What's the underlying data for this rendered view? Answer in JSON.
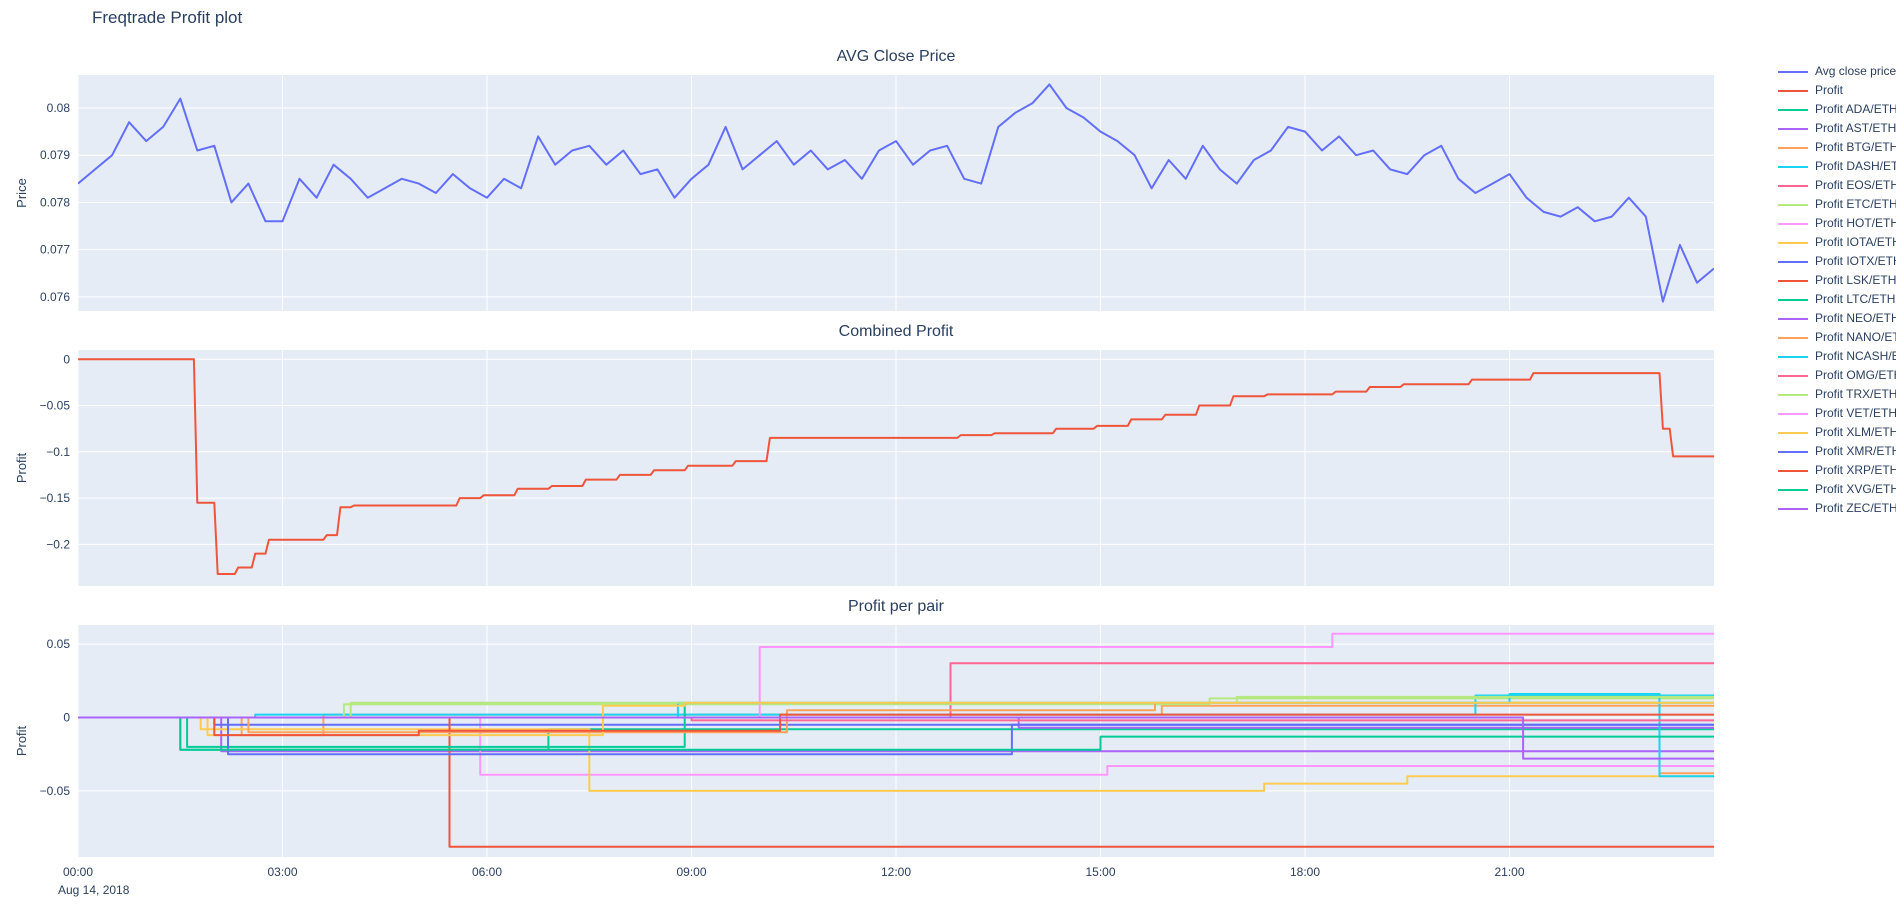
{
  "figure": {
    "title": "Freqtrade Profit plot"
  },
  "colors": {
    "text": "#2a3f5f",
    "plot_bg": "#e5ecf6",
    "grid": "#ffffff"
  },
  "xaxis": {
    "range": [
      0,
      24
    ],
    "ticks": [
      {
        "x": 0,
        "label": "00:00"
      },
      {
        "x": 3,
        "label": "03:00"
      },
      {
        "x": 6,
        "label": "06:00"
      },
      {
        "x": 9,
        "label": "09:00"
      },
      {
        "x": 12,
        "label": "12:00"
      },
      {
        "x": 15,
        "label": "15:00"
      },
      {
        "x": 18,
        "label": "18:00"
      },
      {
        "x": 21,
        "label": "21:00"
      }
    ],
    "date_label": "Aug 14, 2018"
  },
  "chart_data": [
    {
      "type": "line",
      "title": "AVG Close Price",
      "ylabel": "Price",
      "ylim": [
        0.0757,
        0.0807
      ],
      "yticks": {
        "values": [
          0.076,
          0.077,
          0.078,
          0.079,
          0.08
        ],
        "labels": [
          "0.076",
          "0.077",
          "0.078",
          "0.079",
          "0.08"
        ]
      },
      "series": [
        {
          "name": "Avg close price",
          "color": "#636efa",
          "x0": 0,
          "dx": 0.25,
          "y": [
            0.0784,
            0.0787,
            0.079,
            0.0797,
            0.0793,
            0.0796,
            0.0802,
            0.0791,
            0.0792,
            0.078,
            0.0784,
            0.0776,
            0.0776,
            0.0785,
            0.0781,
            0.0788,
            0.0785,
            0.0781,
            0.0783,
            0.0785,
            0.0784,
            0.0782,
            0.0786,
            0.0783,
            0.0781,
            0.0785,
            0.0783,
            0.0794,
            0.0788,
            0.0791,
            0.0792,
            0.0788,
            0.0791,
            0.0786,
            0.0787,
            0.0781,
            0.0785,
            0.0788,
            0.0796,
            0.0787,
            0.079,
            0.0793,
            0.0788,
            0.0791,
            0.0787,
            0.0789,
            0.0785,
            0.0791,
            0.0793,
            0.0788,
            0.0791,
            0.0792,
            0.0785,
            0.0784,
            0.0796,
            0.0799,
            0.0801,
            0.0805,
            0.08,
            0.0798,
            0.0795,
            0.0793,
            0.079,
            0.0783,
            0.0789,
            0.0785,
            0.0792,
            0.0787,
            0.0784,
            0.0789,
            0.0791,
            0.0796,
            0.0795,
            0.0791,
            0.0794,
            0.079,
            0.0791,
            0.0787,
            0.0786,
            0.079,
            0.0792,
            0.0785,
            0.0782,
            0.0784,
            0.0786,
            0.0781,
            0.0778,
            0.0777,
            0.0779,
            0.0776,
            0.0777,
            0.0781,
            0.0777,
            0.0759,
            0.0771,
            0.0763,
            0.0766
          ]
        }
      ]
    },
    {
      "type": "line",
      "title": "Combined Profit",
      "ylabel": "Profit",
      "ylim": [
        -0.245,
        0.01
      ],
      "yticks": {
        "values": [
          0,
          -0.05,
          -0.1,
          -0.15,
          -0.2
        ],
        "labels": [
          "0",
          "−0.05",
          "−0.1",
          "−0.15",
          "−0.2"
        ]
      },
      "series": [
        {
          "name": "Profit",
          "color": "#ef553b",
          "x": [
            0,
            1.7,
            1.75,
            2.0,
            2.05,
            2.3,
            2.35,
            2.55,
            2.6,
            2.75,
            2.8,
            3.6,
            3.65,
            3.8,
            3.85,
            4.0,
            4.05,
            5.55,
            5.6,
            5.9,
            5.95,
            6.4,
            6.45,
            6.9,
            6.95,
            7.4,
            7.45,
            7.9,
            7.95,
            8.4,
            8.45,
            8.9,
            8.95,
            9.6,
            9.65,
            10.1,
            10.15,
            12.9,
            12.95,
            13.4,
            13.45,
            14.3,
            14.35,
            14.9,
            14.95,
            15.4,
            15.45,
            15.9,
            15.95,
            16.4,
            16.45,
            16.9,
            16.95,
            17.4,
            17.45,
            18.4,
            18.45,
            18.9,
            18.95,
            19.4,
            19.45,
            20.4,
            20.45,
            21.3,
            21.35,
            23.2,
            23.25,
            23.35,
            23.4,
            24
          ],
          "y": [
            0,
            0,
            -0.155,
            -0.155,
            -0.232,
            -0.232,
            -0.225,
            -0.225,
            -0.21,
            -0.21,
            -0.195,
            -0.195,
            -0.19,
            -0.19,
            -0.16,
            -0.16,
            -0.158,
            -0.158,
            -0.15,
            -0.15,
            -0.147,
            -0.147,
            -0.14,
            -0.14,
            -0.137,
            -0.137,
            -0.13,
            -0.13,
            -0.125,
            -0.125,
            -0.12,
            -0.12,
            -0.115,
            -0.115,
            -0.11,
            -0.11,
            -0.085,
            -0.085,
            -0.082,
            -0.082,
            -0.08,
            -0.08,
            -0.075,
            -0.075,
            -0.072,
            -0.072,
            -0.065,
            -0.065,
            -0.06,
            -0.06,
            -0.05,
            -0.05,
            -0.04,
            -0.04,
            -0.038,
            -0.038,
            -0.035,
            -0.035,
            -0.03,
            -0.03,
            -0.027,
            -0.027,
            -0.022,
            -0.022,
            -0.015,
            -0.015,
            -0.075,
            -0.075,
            -0.105,
            -0.105
          ]
        }
      ]
    },
    {
      "type": "line",
      "title": "Profit per pair",
      "ylabel": "Profit",
      "ylim": [
        -0.095,
        0.063
      ],
      "yticks": {
        "values": [
          0.05,
          0,
          -0.05
        ],
        "labels": [
          "0.05",
          "0",
          "−0.05"
        ]
      },
      "series": [
        {
          "name": "Profit ADA/ETH",
          "color": "#00cc96",
          "x": [
            0,
            1.5,
            1.5,
            6.9,
            6.9,
            24
          ],
          "y": [
            0,
            0,
            -0.022,
            -0.022,
            -0.008,
            -0.008
          ]
        },
        {
          "name": "Profit AST/ETH",
          "color": "#ab63fa",
          "x": [
            0,
            2.1,
            2.1,
            24
          ],
          "y": [
            0,
            0,
            -0.023,
            -0.023
          ]
        },
        {
          "name": "Profit BTG/ETH",
          "color": "#ffa15a",
          "x": [
            0,
            2.4,
            2.4,
            3.6,
            3.6,
            15.9,
            15.9,
            24
          ],
          "y": [
            0,
            0,
            -0.012,
            -0.012,
            0.002,
            0.002,
            0.008,
            0.008
          ]
        },
        {
          "name": "Profit DASH/ETH",
          "color": "#19d3f3",
          "x": [
            0,
            2.6,
            2.6,
            20.5,
            20.5,
            24
          ],
          "y": [
            0,
            0,
            0.002,
            0.002,
            0.015,
            0.015
          ]
        },
        {
          "name": "Profit EOS/ETH",
          "color": "#ff6692",
          "x": [
            0,
            12.8,
            12.8,
            24
          ],
          "y": [
            0,
            0,
            0.037,
            0.037
          ]
        },
        {
          "name": "Profit ETC/ETH",
          "color": "#b6e880",
          "x": [
            0,
            3.9,
            3.9,
            16.6,
            16.6,
            24
          ],
          "y": [
            0,
            0,
            0.009,
            0.009,
            0.013,
            0.013
          ]
        },
        {
          "name": "Profit HOT/ETH",
          "color": "#ff97ff",
          "x": [
            0,
            5.9,
            5.9,
            15.1,
            15.1,
            24
          ],
          "y": [
            0,
            0,
            -0.039,
            -0.039,
            -0.033,
            -0.033
          ]
        },
        {
          "name": "Profit IOTA/ETH",
          "color": "#fecb52",
          "x": [
            0,
            1.8,
            1.8,
            7.5,
            7.5,
            17.4,
            17.4,
            19.5,
            19.5,
            24
          ],
          "y": [
            0,
            0,
            -0.008,
            -0.008,
            -0.05,
            -0.05,
            -0.045,
            -0.045,
            -0.04,
            -0.04
          ]
        },
        {
          "name": "Profit IOTX/ETH",
          "color": "#636efa",
          "x": [
            0,
            2.0,
            2.0,
            24
          ],
          "y": [
            0,
            0,
            -0.005,
            -0.005
          ]
        },
        {
          "name": "Profit LSK/ETH",
          "color": "#ef553b",
          "x": [
            0,
            5.45,
            5.45,
            24
          ],
          "y": [
            0,
            0,
            -0.088,
            -0.088
          ]
        },
        {
          "name": "Profit LTC/ETH",
          "color": "#00cc96",
          "x": [
            0,
            1.6,
            1.6,
            8.9,
            8.9,
            24
          ],
          "y": [
            0,
            0,
            -0.02,
            -0.02,
            0.01,
            0.01
          ]
        },
        {
          "name": "Profit NEO/ETH",
          "color": "#ab63fa",
          "x": [
            0,
            13.8,
            13.8,
            24
          ],
          "y": [
            0,
            0,
            -0.007,
            -0.007
          ]
        },
        {
          "name": "Profit NANO/ETH",
          "color": "#ffa15a",
          "x": [
            0,
            2.5,
            2.5,
            10.4,
            10.4,
            15.8,
            15.8,
            23.2,
            23.2,
            24
          ],
          "y": [
            0,
            0,
            -0.01,
            -0.01,
            0.005,
            0.005,
            0.01,
            0.01,
            -0.038,
            -0.038
          ]
        },
        {
          "name": "Profit NCASH/ETH",
          "color": "#19d3f3",
          "x": [
            0,
            8.8,
            8.8,
            21.0,
            21.0,
            23.2,
            23.2,
            24
          ],
          "y": [
            0,
            0,
            0.01,
            0.01,
            0.016,
            0.016,
            -0.04,
            -0.04
          ]
        },
        {
          "name": "Profit OMG/ETH",
          "color": "#ff6692",
          "x": [
            0,
            9.0,
            9.0,
            24
          ],
          "y": [
            0,
            0,
            -0.002,
            -0.002
          ]
        },
        {
          "name": "Profit TRX/ETH",
          "color": "#b6e880",
          "x": [
            0,
            4.0,
            4.0,
            17.0,
            17.0,
            24
          ],
          "y": [
            0,
            0,
            0.01,
            0.01,
            0.014,
            0.014
          ]
        },
        {
          "name": "Profit VET/ETH",
          "color": "#ff97ff",
          "x": [
            0,
            10.0,
            10.0,
            18.4,
            18.4,
            24
          ],
          "y": [
            0,
            0,
            0.048,
            0.048,
            0.057,
            0.057
          ]
        },
        {
          "name": "Profit XLM/ETH",
          "color": "#fecb52",
          "x": [
            0,
            1.9,
            1.9,
            7.7,
            7.7,
            8.9,
            8.9,
            24
          ],
          "y": [
            0,
            0,
            -0.012,
            -0.012,
            0.008,
            0.008,
            0.01,
            0.01
          ]
        },
        {
          "name": "Profit XMR/ETH",
          "color": "#636efa",
          "x": [
            0,
            2.2,
            2.2,
            13.7,
            13.7,
            24
          ],
          "y": [
            0,
            0,
            -0.025,
            -0.025,
            -0.005,
            -0.005
          ]
        },
        {
          "name": "Profit XRP/ETH",
          "color": "#ef553b",
          "x": [
            0,
            2.0,
            2.0,
            5.0,
            5.0,
            10.3,
            10.3,
            24
          ],
          "y": [
            0,
            0,
            -0.012,
            -0.012,
            -0.009,
            -0.009,
            0.002,
            0.002
          ]
        },
        {
          "name": "Profit XVG/ETH",
          "color": "#00cc96",
          "x": [
            0,
            1.5,
            1.5,
            15.0,
            15.0,
            24
          ],
          "y": [
            0,
            0,
            -0.022,
            -0.022,
            -0.013,
            -0.013
          ]
        },
        {
          "name": "Profit ZEC/ETH",
          "color": "#ab63fa",
          "x": [
            0,
            21.2,
            21.2,
            24
          ],
          "y": [
            0,
            0,
            -0.028,
            -0.028
          ]
        }
      ]
    }
  ]
}
